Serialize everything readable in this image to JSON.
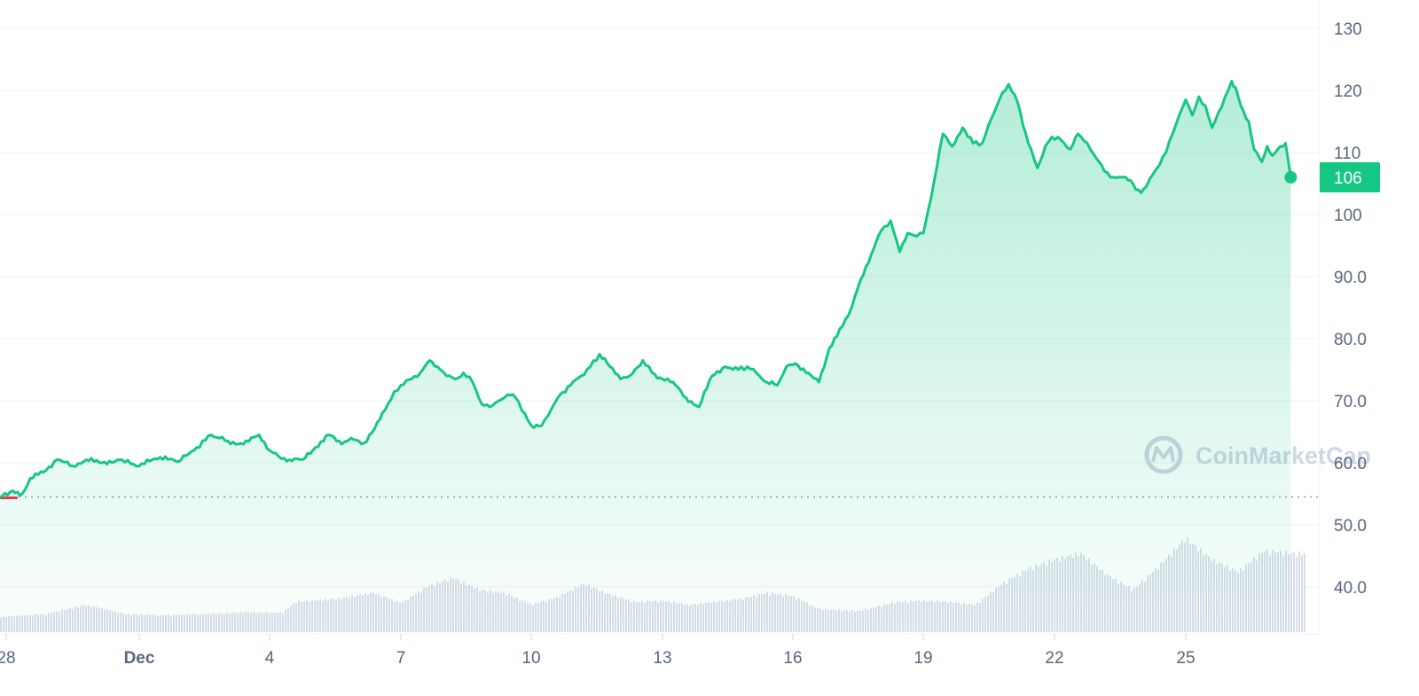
{
  "brand": {
    "watermark_text": "CoinMarketCap",
    "watermark_color": "#cfd6e4"
  },
  "colors": {
    "up_line": "#16c784",
    "down_line": "#ea3943",
    "area_fill_top": "#16c784",
    "price_badge_bg": "#16c784",
    "price_badge_text": "#ffffff",
    "grid": "#eff2f5",
    "volume_bar": "#cfd6e4",
    "axis_text": "#58667e"
  },
  "chart_data": {
    "type": "area",
    "title": "",
    "xlabel": "",
    "ylabel": "",
    "ylim": [
      34,
      133
    ],
    "y_ticks": [
      "130",
      "120",
      "110",
      "100",
      "90.0",
      "80.0",
      "70.0",
      "60.0",
      "50.0",
      "40.0"
    ],
    "y_tick_values": [
      130,
      120,
      110,
      100,
      90,
      80,
      70,
      60,
      50,
      40
    ],
    "x_range_days": [
      27.95,
      37.8
    ],
    "x_ticks": [
      {
        "label": "28",
        "day": 28,
        "bold": false
      },
      {
        "label": "Dec",
        "day": 29,
        "bold": true
      },
      {
        "label": "4",
        "day": 30,
        "bold": false
      },
      {
        "label": "7",
        "day": 31,
        "bold": false
      },
      {
        "label": "10",
        "day": 32,
        "bold": false
      },
      {
        "label": "13",
        "day": 33,
        "bold": false
      },
      {
        "label": "16",
        "day": 34,
        "bold": false
      },
      {
        "label": "19",
        "day": 35,
        "bold": false
      },
      {
        "label": "22",
        "day": 36,
        "bold": false
      },
      {
        "label": "25",
        "day": 37,
        "bold": false
      }
    ],
    "reference_price": 54.5,
    "current_price": 106,
    "current_price_label": "106",
    "series": [
      {
        "x": [
          27.95,
          28.05,
          28.12,
          28.18,
          28.28,
          28.38,
          28.5,
          28.6,
          28.72,
          28.85,
          29.0,
          29.1,
          29.2,
          29.3,
          29.42,
          29.55,
          29.68,
          29.8,
          29.92,
          30.0,
          30.07,
          30.15,
          30.25,
          30.35,
          30.45,
          30.55,
          30.62,
          30.68,
          30.72,
          30.8,
          30.88,
          30.95,
          31.0,
          31.08,
          31.15,
          31.22,
          31.28,
          31.35,
          31.42,
          31.48,
          31.55,
          31.62,
          31.68,
          31.75,
          31.82,
          31.88,
          31.95,
          32.0,
          32.08,
          32.15,
          32.22,
          32.3,
          32.38,
          32.45,
          32.52,
          32.6,
          32.68,
          32.75,
          32.85,
          32.92,
          33.0,
          33.08,
          33.18,
          33.28,
          33.38,
          33.48,
          33.58,
          33.65,
          33.72,
          33.8,
          33.88,
          33.95,
          34.02,
          34.1,
          34.2,
          34.28,
          34.38,
          34.45,
          34.52,
          34.6,
          34.68,
          34.75,
          34.82,
          34.88,
          34.95,
          35.0,
          35.08,
          35.15,
          35.22,
          35.3,
          35.38,
          35.45,
          35.52,
          35.58,
          35.65,
          35.72,
          35.8,
          35.87,
          35.93,
          35.98,
          36.05,
          36.12,
          36.18,
          36.25,
          36.32,
          36.38,
          36.45,
          36.52,
          36.58,
          36.62,
          36.66,
          36.7,
          36.75,
          36.8,
          36.85,
          36.9,
          36.95,
          37.0,
          37.05,
          37.1,
          37.15,
          37.2,
          37.25,
          37.3,
          37.35,
          37.38,
          37.42,
          37.48,
          37.52,
          37.58,
          37.62,
          37.66,
          37.7,
          37.76,
          37.8
        ],
        "values": [
          54.5,
          55.5,
          55.0,
          57.5,
          58.5,
          60.5,
          59.5,
          60.5,
          60.0,
          60.5,
          59.5,
          60.5,
          61.0,
          60.2,
          62.0,
          64.5,
          63.5,
          63.0,
          64.5,
          62.0,
          61.0,
          60.5,
          60.5,
          62.5,
          64.5,
          63.0,
          64.0,
          63.5,
          63.2,
          65.5,
          68.5,
          71.5,
          72.5,
          73.5,
          74.5,
          76.5,
          75.5,
          74.0,
          73.5,
          74.5,
          73.0,
          69.5,
          69.0,
          70.0,
          71.0,
          70.5,
          68.0,
          66.0,
          66.0,
          68.5,
          71.0,
          72.5,
          74.0,
          75.5,
          77.5,
          75.5,
          73.5,
          74.0,
          76.5,
          74.5,
          73.5,
          73.0,
          70.5,
          69.0,
          74.0,
          75.5,
          75.0,
          75.5,
          74.5,
          73.0,
          72.5,
          75.5,
          76.0,
          74.5,
          73.0,
          78.5,
          82.0,
          85.0,
          89.5,
          93.5,
          97.5,
          99.0,
          94.0,
          97.0,
          96.5,
          97.0,
          105.0,
          113.0,
          111.0,
          114.0,
          111.5,
          111.5,
          115.5,
          118.5,
          121.0,
          118.0,
          111.5,
          107.5,
          111.0,
          112.5,
          112.0,
          110.5,
          113.0,
          111.5,
          109.0,
          107.0,
          106.0,
          106.0,
          105.5,
          104.0,
          103.5,
          104.5,
          106.5,
          108.0,
          110.0,
          113.0,
          116.0,
          118.5,
          116.0,
          119.0,
          117.5,
          114.0,
          116.5,
          119.0,
          121.5,
          120.5,
          117.5,
          115.0,
          110.5,
          108.5,
          111.0,
          109.5,
          110.5,
          111.5,
          106.0
        ]
      }
    ],
    "volume": {
      "x": [
        27.95,
        28.3,
        28.6,
        28.9,
        29.2,
        29.5,
        29.8,
        30.1,
        30.2,
        30.5,
        30.8,
        31.0,
        31.2,
        31.4,
        31.6,
        31.8,
        32.0,
        32.2,
        32.4,
        32.6,
        32.8,
        33.0,
        33.2,
        33.4,
        33.6,
        33.8,
        34.0,
        34.2,
        34.5,
        34.8,
        35.0,
        35.2,
        35.4,
        35.6,
        35.8,
        36.0,
        36.2,
        36.4,
        36.6,
        36.8,
        37.0,
        37.2,
        37.4,
        37.6,
        37.8
      ],
      "values": [
        0.25,
        0.3,
        0.45,
        0.3,
        0.28,
        0.3,
        0.33,
        0.32,
        0.5,
        0.55,
        0.65,
        0.48,
        0.75,
        0.9,
        0.7,
        0.65,
        0.45,
        0.58,
        0.8,
        0.62,
        0.5,
        0.52,
        0.45,
        0.5,
        0.55,
        0.65,
        0.6,
        0.38,
        0.35,
        0.5,
        0.52,
        0.5,
        0.45,
        0.8,
        1.05,
        1.2,
        1.3,
        0.95,
        0.7,
        1.1,
        1.55,
        1.2,
        1.0,
        1.35,
        1.3
      ]
    }
  }
}
